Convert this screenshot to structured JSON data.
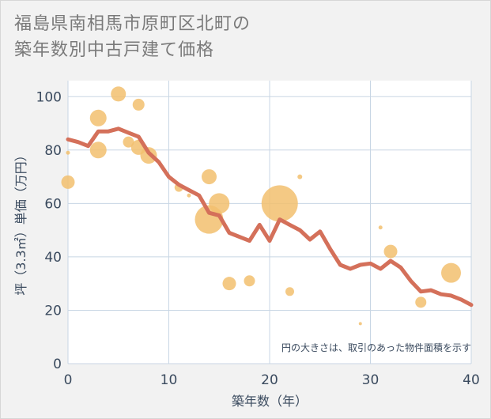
{
  "title_lines": [
    "福島県南相馬市原町区北町の",
    "築年数別中古戸建て価格"
  ],
  "chart_data": {
    "type": "scatter+line",
    "xlabel": "築年数（年）",
    "ylabel": "坪（3.3㎡）単価（万円）",
    "xlim": [
      0,
      40
    ],
    "ylim": [
      0,
      106
    ],
    "x_ticks": [
      0,
      10,
      20,
      30,
      40
    ],
    "y_ticks": [
      0,
      20,
      40,
      60,
      80,
      100
    ],
    "grid": true,
    "note": "円の大きさは、取引のあった物件面積を示す",
    "colors": {
      "line": "#d4705a",
      "bubble": "#f2c06f",
      "grid": "#c8d6e4"
    },
    "series": [
      {
        "name": "average",
        "type": "line",
        "x": [
          0,
          1,
          2,
          3,
          4,
          5,
          6,
          7,
          8,
          9,
          10,
          11,
          12,
          13,
          14,
          15,
          16,
          17,
          18,
          19,
          20,
          21,
          22,
          23,
          24,
          25,
          26,
          27,
          28,
          29,
          30,
          31,
          32,
          33,
          34,
          35,
          36,
          37,
          38,
          39,
          40
        ],
        "y": [
          84,
          83,
          81.5,
          87,
          87,
          88,
          86.5,
          85,
          79,
          75.5,
          70,
          67,
          65,
          63,
          56.5,
          55.5,
          49,
          47.5,
          46,
          52,
          46,
          54,
          52,
          50,
          46.5,
          49.5,
          43,
          37,
          35.5,
          37,
          37.5,
          35.5,
          38.5,
          36,
          31,
          27,
          27.5,
          26,
          25.5,
          24,
          22
        ]
      },
      {
        "name": "transactions",
        "type": "bubble",
        "points": [
          {
            "x": 0,
            "y": 79,
            "size": 5
          },
          {
            "x": 0,
            "y": 68,
            "size": 17
          },
          {
            "x": 3,
            "y": 92,
            "size": 21
          },
          {
            "x": 3,
            "y": 80,
            "size": 21
          },
          {
            "x": 5,
            "y": 101,
            "size": 19
          },
          {
            "x": 6,
            "y": 83,
            "size": 14
          },
          {
            "x": 7,
            "y": 97,
            "size": 15
          },
          {
            "x": 7,
            "y": 81,
            "size": 19
          },
          {
            "x": 8,
            "y": 78,
            "size": 21
          },
          {
            "x": 11,
            "y": 66,
            "size": 11
          },
          {
            "x": 12,
            "y": 63,
            "size": 5
          },
          {
            "x": 14,
            "y": 70,
            "size": 19
          },
          {
            "x": 14,
            "y": 54,
            "size": 36
          },
          {
            "x": 15,
            "y": 60,
            "size": 26
          },
          {
            "x": 16,
            "y": 30,
            "size": 17
          },
          {
            "x": 18,
            "y": 31,
            "size": 14
          },
          {
            "x": 21,
            "y": 60,
            "size": 46
          },
          {
            "x": 22,
            "y": 27,
            "size": 11
          },
          {
            "x": 23,
            "y": 70,
            "size": 6
          },
          {
            "x": 29,
            "y": 15,
            "size": 4
          },
          {
            "x": 31,
            "y": 51,
            "size": 5
          },
          {
            "x": 32,
            "y": 42,
            "size": 17
          },
          {
            "x": 35,
            "y": 23,
            "size": 14
          },
          {
            "x": 38,
            "y": 34,
            "size": 25
          }
        ]
      }
    ]
  }
}
